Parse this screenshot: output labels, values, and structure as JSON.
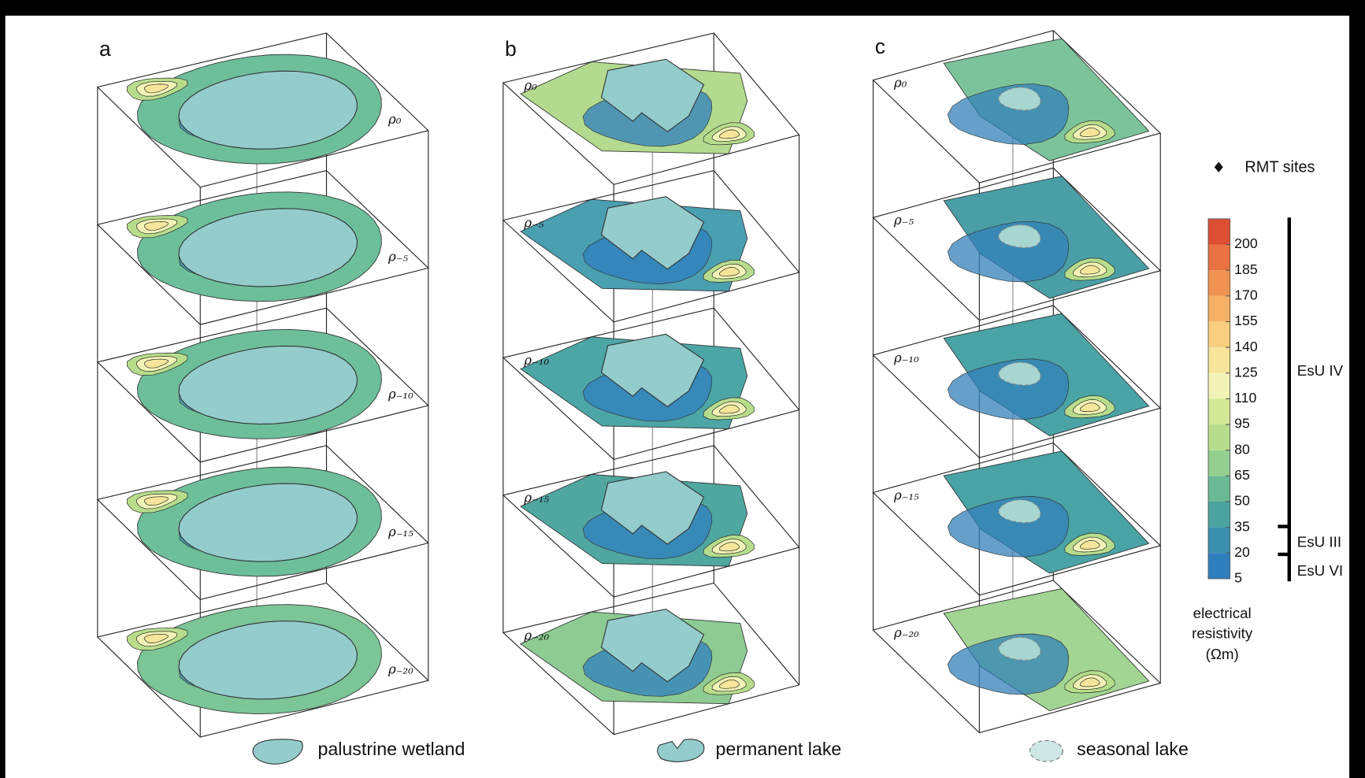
{
  "panels": [
    {
      "letter": "a",
      "slices": [
        {
          "label": "ρ₀"
        },
        {
          "label": "ρ₋₅"
        },
        {
          "label": "ρ₋₁₀"
        },
        {
          "label": "ρ₋₁₅"
        },
        {
          "label": "ρ₋₂₀"
        }
      ]
    },
    {
      "letter": "b",
      "slices": [
        {
          "label": "ρ₀"
        },
        {
          "label": "ρ₋₅"
        },
        {
          "label": "ρ₋₁₀"
        },
        {
          "label": "ρ₋₁₅"
        },
        {
          "label": "ρ₋₂₀"
        }
      ]
    },
    {
      "letter": "c",
      "slices": [
        {
          "label": "ρ₀"
        },
        {
          "label": "ρ₋₅"
        },
        {
          "label": "ρ₋₁₀"
        },
        {
          "label": "ρ₋₁₅"
        },
        {
          "label": "ρ₋₂₀"
        }
      ]
    }
  ],
  "legend": {
    "rmt_sites": "RMT sites",
    "items": [
      "palustrine wetland",
      "permanent lake",
      "seasonal lake"
    ]
  },
  "colorbar": {
    "title_lines": [
      "electrical",
      "resistivity",
      "(Ωm)"
    ],
    "ticks": [
      5,
      20,
      35,
      50,
      65,
      80,
      95,
      110,
      125,
      140,
      155,
      170,
      185,
      200
    ],
    "colors": [
      "#2f7fbf",
      "#3b8fae",
      "#4ba39f",
      "#6cba95",
      "#94cf8f",
      "#b7dd8c",
      "#d5e898",
      "#f2f3b6",
      "#f6e59a",
      "#f7cf7f",
      "#f5b266",
      "#f09352",
      "#e87242",
      "#dc4f33"
    ]
  },
  "units": [
    "EsU IV",
    "EsU III",
    "EsU VI"
  ]
}
